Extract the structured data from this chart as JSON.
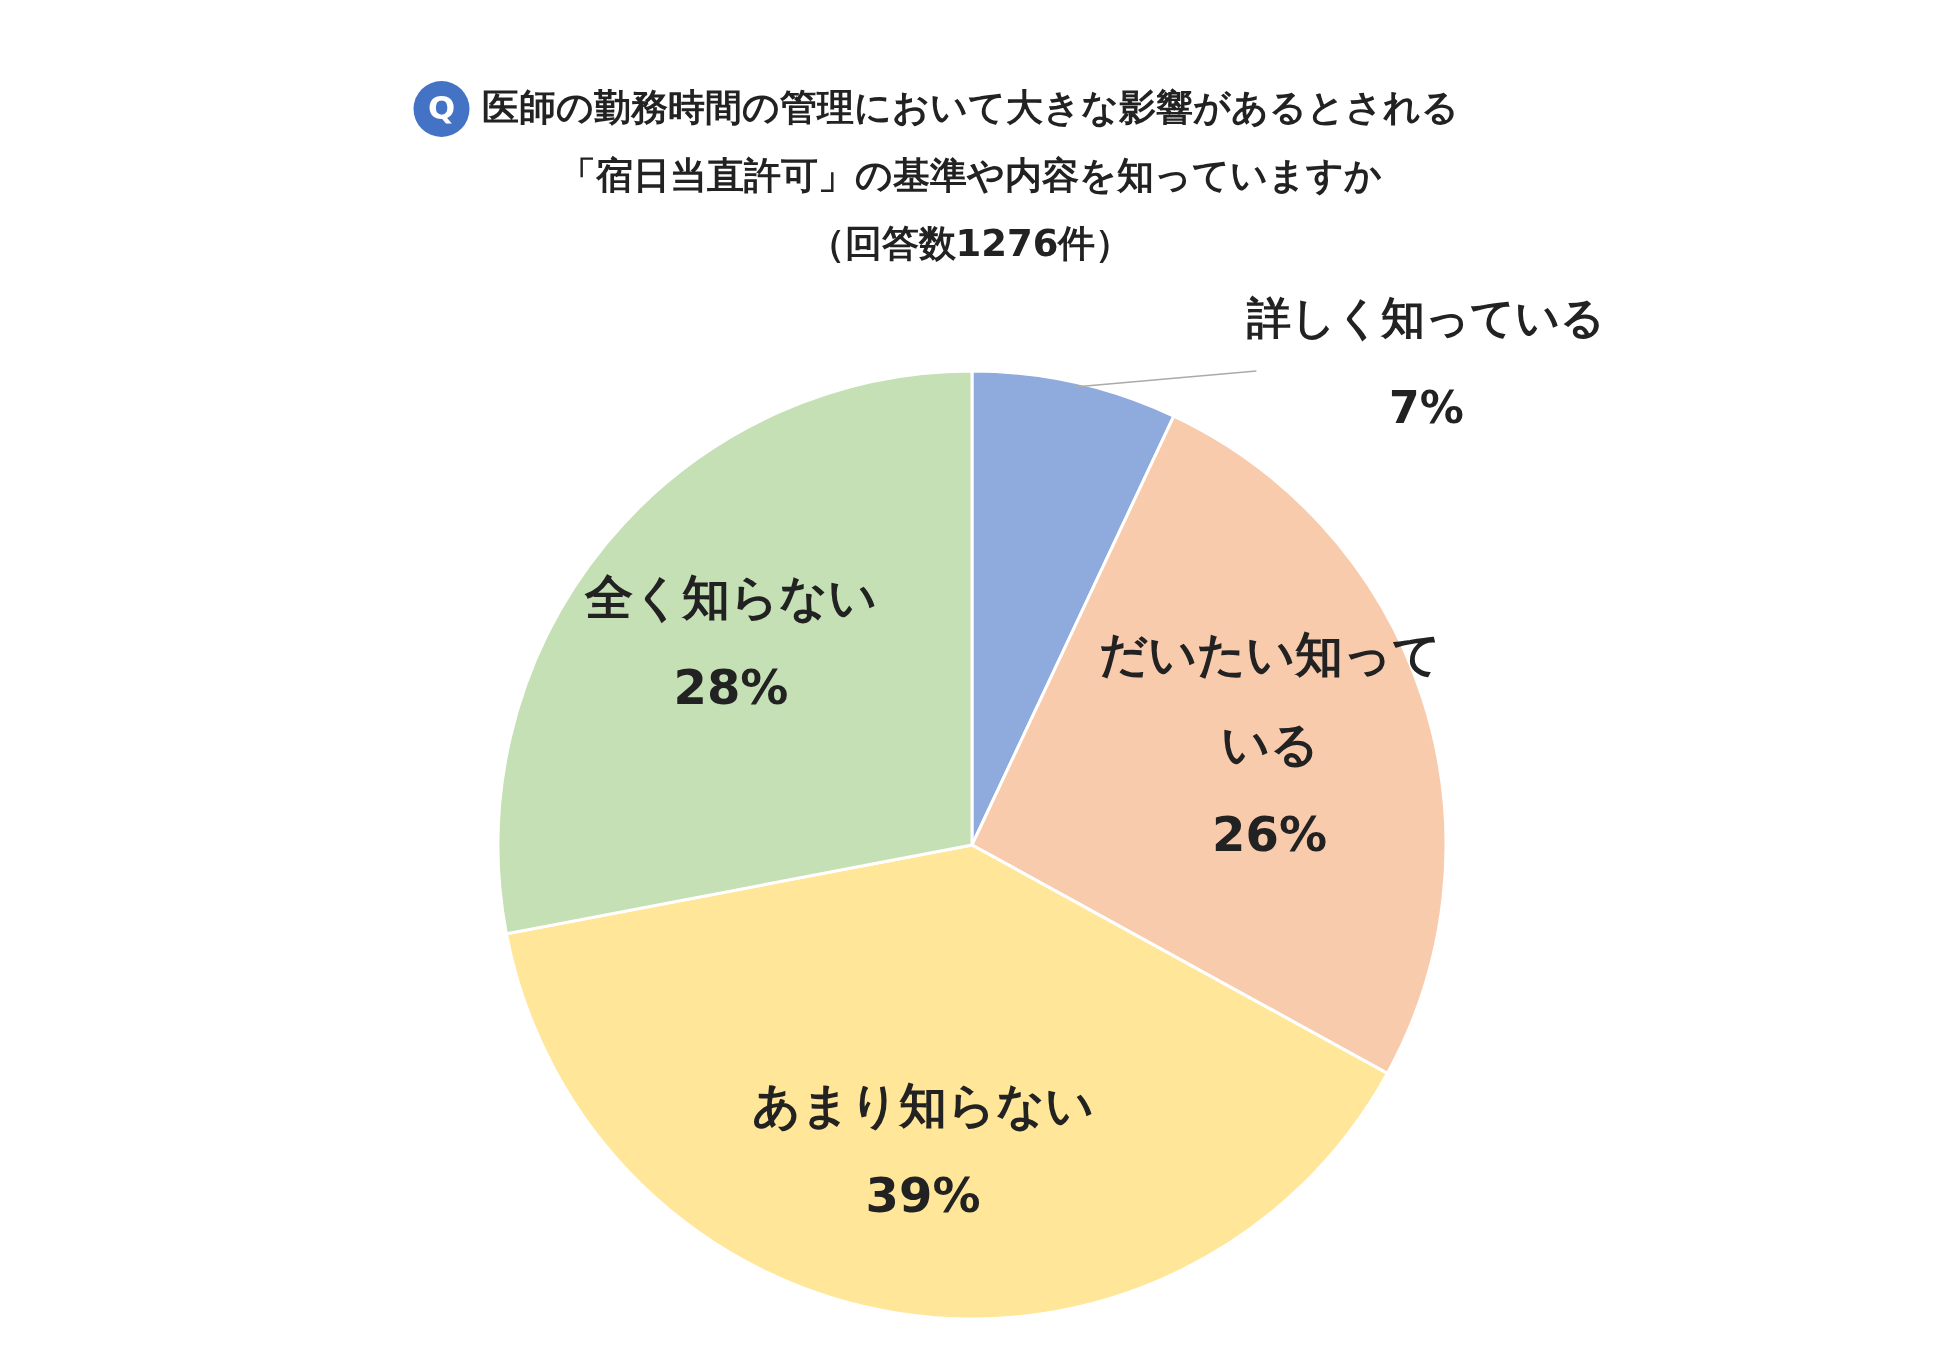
{
  "chart_data": {
    "type": "pie",
    "title": "医師の勤務時間の管理において大きな影響があるとされる「宿日当直許可」の基準や内容を知っていますか",
    "subtitle": "（回答数1276件）",
    "annotations": [
      "Q"
    ],
    "categories": [
      "詳しく知っている",
      "だいたい知っている",
      "あまり知らない",
      "全く知らない"
    ],
    "values": [
      7,
      26,
      39,
      28
    ],
    "colors": [
      "#8faadc",
      "#f8cbad",
      "#ffe699",
      "#c5e0b4"
    ],
    "value_labels": [
      "7%",
      "26%",
      "39%",
      "28%"
    ]
  }
}
